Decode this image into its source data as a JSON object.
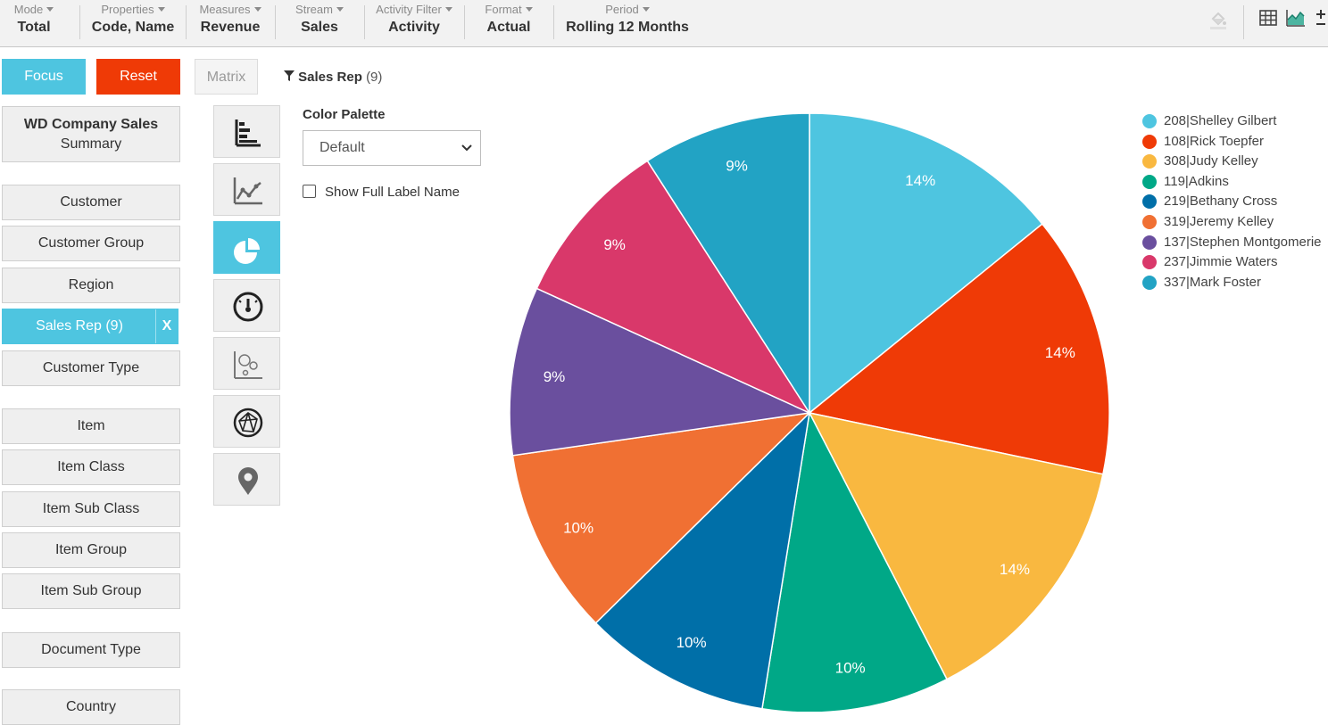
{
  "toolbar": {
    "items": [
      {
        "label": "Mode",
        "value": "Total"
      },
      {
        "label": "Properties",
        "value": "Code, Name"
      },
      {
        "label": "Measures",
        "value": "Revenue"
      },
      {
        "label": "Stream",
        "value": "Sales"
      },
      {
        "label": "Activity Filter",
        "value": "Activity"
      },
      {
        "label": "Format",
        "value": "Actual"
      },
      {
        "label": "Period",
        "value": "Rolling 12 Months"
      }
    ],
    "icons": [
      "paint-bucket-icon",
      "table-icon",
      "area-chart-icon",
      "plus-minus-icon"
    ]
  },
  "actions": {
    "focus": "Focus",
    "reset": "Reset",
    "matrix": "Matrix"
  },
  "filter": {
    "name": "Sales Rep",
    "count": "(9)"
  },
  "sidebar": {
    "title_line1": "WD Company Sales",
    "title_line2": "Summary",
    "items": [
      "Customer",
      "Customer Group",
      "Region",
      "Sales Rep (9)",
      "Customer Type",
      "Item",
      "Item Class",
      "Item Sub Class",
      "Item Group",
      "Item Sub Group",
      "Document Type",
      "Country"
    ],
    "active_close": "X"
  },
  "chart_types": [
    "bar-chart-icon",
    "line-chart-icon",
    "pie-chart-icon",
    "gauge-icon",
    "bubble-chart-icon",
    "network-icon",
    "map-pin-icon"
  ],
  "palette": {
    "label": "Color Palette",
    "selected": "Default",
    "show_full_label": "Show Full Label Name"
  },
  "colors": {
    "accent": "#4ec5e0",
    "reset": "#ef3a06"
  },
  "chart_data": {
    "type": "pie",
    "slices": [
      {
        "label": "208|Shelley Gilbert",
        "value": 14,
        "color": "#4ec5e0"
      },
      {
        "label": "108|Rick Toepfer",
        "value": 14,
        "color": "#ef3a06"
      },
      {
        "label": "308|Judy Kelley",
        "value": 14,
        "color": "#f9b840"
      },
      {
        "label": "119|Adkins",
        "value": 10,
        "color": "#00a887"
      },
      {
        "label": "219|Bethany Cross",
        "value": 10,
        "color": "#006fa8"
      },
      {
        "label": "319|Jeremy Kelley",
        "value": 10,
        "color": "#f07033"
      },
      {
        "label": "137|Stephen Montgomerie",
        "value": 9,
        "color": "#6a4f9e"
      },
      {
        "label": "237|Jimmie Waters",
        "value": 9,
        "color": "#d9386a"
      },
      {
        "label": "337|Mark Foster",
        "value": 9,
        "color": "#22a3c4"
      }
    ],
    "value_suffix": "%",
    "legend_position": "top-right"
  }
}
